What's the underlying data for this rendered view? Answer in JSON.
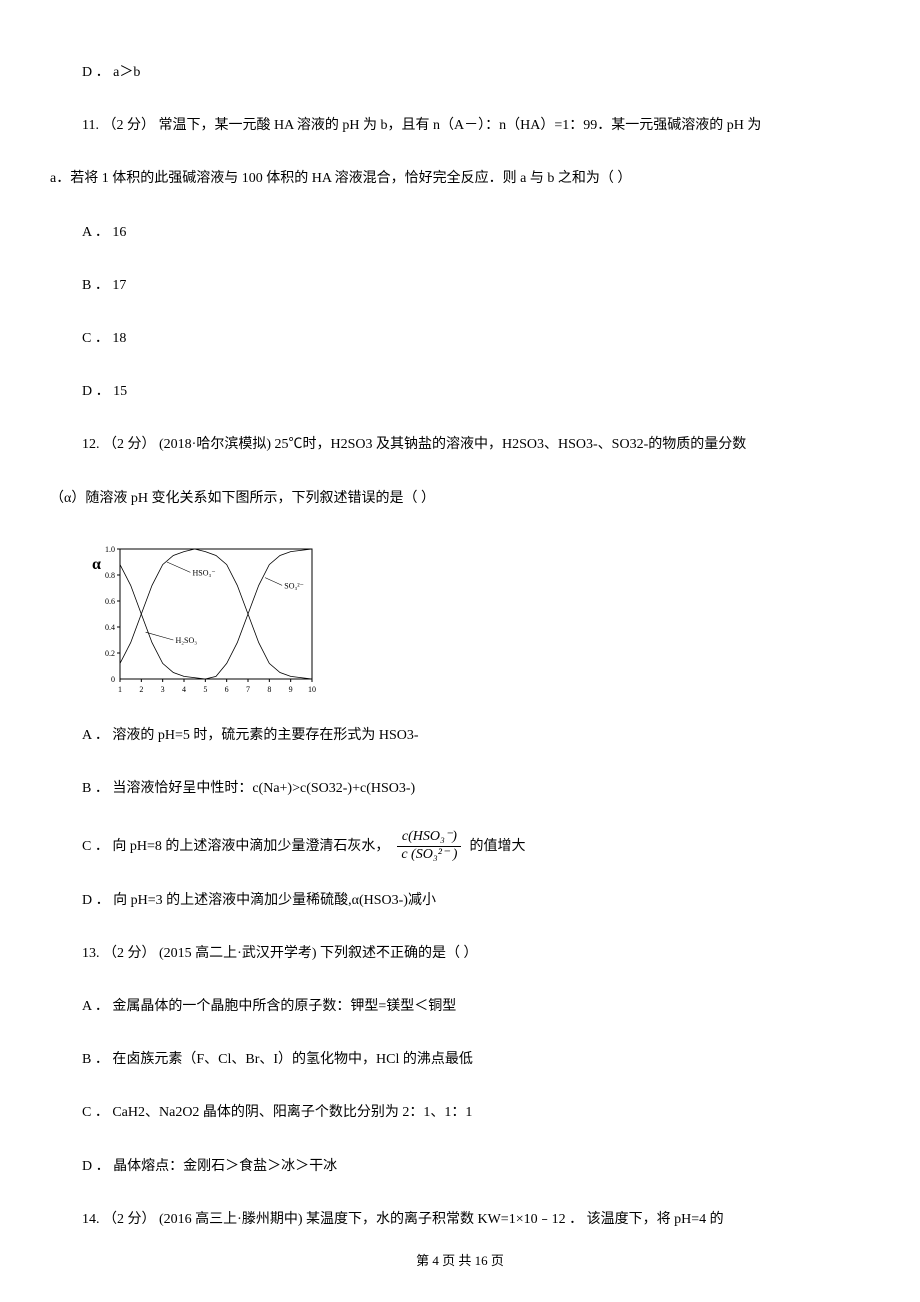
{
  "q10": {
    "optionD": "D ． a＞b"
  },
  "q11": {
    "stem_line1": "11.  （2 分）  常温下，某一元酸 HA 溶液的 pH 为 b，且有 n（A－）：n（HA）=1：99．某一元强碱溶液的 pH 为",
    "stem_line2": "a．若将 1 体积的此强碱溶液与 100 体积的 HA 溶液混合，恰好完全反应．则 a 与 b 之和为（     ）",
    "optionA": "A ． 16",
    "optionB": "B ． 17",
    "optionC": "C ． 18",
    "optionD": "D ． 15"
  },
  "q12": {
    "stem_line1": "12.  （2 分）  (2018·哈尔滨模拟)  25℃时，H2SO3 及其钠盐的溶液中，H2SO3、HSO3-、SO32-的物质的量分数",
    "stem_line2": "（α）随溶液 pH 变化关系如下图所示，下列叙述错误的是（     ）",
    "chart": {
      "type": "line",
      "x_axis_label": "",
      "y_axis_label": "α",
      "y_label_fontsize": 16,
      "xlim": [
        1,
        10
      ],
      "ylim": [
        0,
        1.0
      ],
      "xticks": [
        1,
        2,
        3,
        4,
        5,
        6,
        7,
        8,
        9,
        10
      ],
      "yticks": [
        0.2,
        0.4,
        0.6,
        0.8,
        1.0
      ],
      "border_color": "#000000",
      "background_color": "#ffffff",
      "series": [
        {
          "name": "H₂SO₃",
          "label": "H₂SO₃",
          "color": "#000000",
          "points": [
            [
              1,
              0.88
            ],
            [
              1.5,
              0.72
            ],
            [
              2,
              0.5
            ],
            [
              2.5,
              0.28
            ],
            [
              3,
              0.12
            ],
            [
              3.5,
              0.05
            ],
            [
              4,
              0.02
            ],
            [
              5,
              0.0
            ]
          ]
        },
        {
          "name": "HSO₃⁻",
          "label": "HSO₃⁻",
          "color": "#000000",
          "points": [
            [
              1,
              0.12
            ],
            [
              1.5,
              0.28
            ],
            [
              2,
              0.5
            ],
            [
              2.5,
              0.72
            ],
            [
              3,
              0.88
            ],
            [
              3.5,
              0.95
            ],
            [
              4,
              0.98
            ],
            [
              4.5,
              1.0
            ],
            [
              5,
              0.98
            ],
            [
              5.5,
              0.95
            ],
            [
              6,
              0.88
            ],
            [
              6.5,
              0.72
            ],
            [
              7,
              0.5
            ],
            [
              7.5,
              0.28
            ],
            [
              8,
              0.12
            ],
            [
              8.5,
              0.05
            ],
            [
              9,
              0.02
            ],
            [
              10,
              0.0
            ]
          ]
        },
        {
          "name": "SO₃²⁻",
          "label": "SO₃²⁻",
          "color": "#000000",
          "points": [
            [
              5,
              0.0
            ],
            [
              5.5,
              0.02
            ],
            [
              6,
              0.12
            ],
            [
              6.5,
              0.28
            ],
            [
              7,
              0.5
            ],
            [
              7.5,
              0.72
            ],
            [
              8,
              0.88
            ],
            [
              8.5,
              0.95
            ],
            [
              9,
              0.98
            ],
            [
              10,
              1.0
            ]
          ]
        }
      ]
    },
    "optionA": "A ． 溶液的 pH=5 时，硫元素的主要存在形式为 HSO3-",
    "optionB": "B ． 当溶液恰好呈中性时：c(Na+)>c(SO32-)+c(HSO3-)",
    "optionC_pre": "C ． 向 pH=8 的上述溶液中滴加少量澄清石灰水，",
    "optionC_frac_top": "c(HSO₃⁻)",
    "optionC_frac_bot": "c (SO₃²⁻ )",
    "optionC_post": "的值增大",
    "optionD": "D ． 向 pH=3 的上述溶液中滴加少量稀硫酸,α(HSO3-)减小"
  },
  "q13": {
    "stem": "13.  （2 分）  (2015 高二上·武汉开学考)  下列叙述不正确的是（     ）",
    "optionA": "A ． 金属晶体的一个晶胞中所含的原子数：钾型=镁型＜铜型",
    "optionB": "B ． 在卤族元素（F、Cl、Br、I）的氢化物中，HCl 的沸点最低",
    "optionC": "C ． CaH2、Na2O2 晶体的阴、阳离子个数比分别为 2：1、1：1",
    "optionD": "D ． 晶体熔点：金刚石＞食盐＞冰＞干冰"
  },
  "q14": {
    "stem_partial": "14.  （2 分）  (2016 高三上·滕州期中)  某温度下，水的离子积常数 KW=1×10﹣12 ．  该温度下，将 pH=4 的"
  },
  "footer": "第 4 页 共 16 页"
}
